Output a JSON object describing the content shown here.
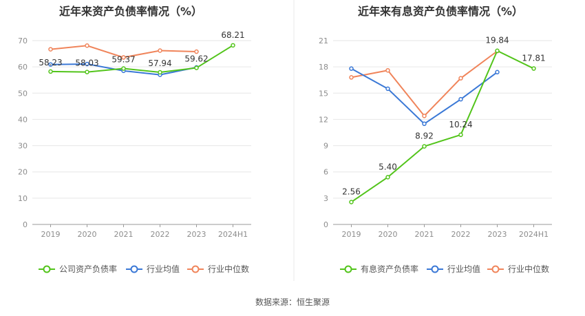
{
  "source": "数据来源：恒生聚源",
  "chart_data": [
    {
      "type": "line",
      "title": "近年来资产负债率情况（%）",
      "categories": [
        "2019",
        "2020",
        "2021",
        "2022",
        "2023",
        "2024H1"
      ],
      "y_ticks": [
        "0",
        "10",
        "20",
        "30",
        "40",
        "50",
        "60",
        "70"
      ],
      "ylim": [
        0,
        70
      ],
      "grid": true,
      "legend_position": "bottom",
      "series": [
        {
          "name": "公司资产负债率",
          "color": "#52c41a",
          "values": [
            58.23,
            58.03,
            59.37,
            57.94,
            59.62,
            68.21
          ],
          "labels": [
            "58.23",
            "58.03",
            "59.37",
            "57.94",
            "59.62",
            "68.21"
          ]
        },
        {
          "name": "行业均值",
          "color": "#3a78d6",
          "values": [
            60.9,
            61.1,
            58.5,
            57.0,
            59.8,
            null
          ]
        },
        {
          "name": "行业中位数",
          "color": "#f0845a",
          "values": [
            66.7,
            68.1,
            63.6,
            66.2,
            65.8,
            null
          ]
        }
      ]
    },
    {
      "type": "line",
      "title": "近年来有息资产负债率情况（%）",
      "categories": [
        "2019",
        "2020",
        "2021",
        "2022",
        "2023",
        "2024H1"
      ],
      "y_ticks": [
        "0",
        "3",
        "6",
        "9",
        "12",
        "15",
        "18",
        "21"
      ],
      "ylim": [
        0,
        21
      ],
      "grid": true,
      "legend_position": "bottom",
      "series": [
        {
          "name": "有息资产负债率",
          "color": "#52c41a",
          "values": [
            2.56,
            5.4,
            8.92,
            10.24,
            19.84,
            17.81
          ],
          "labels": [
            "2.56",
            "5.40",
            "8.92",
            "10.24",
            "19.84",
            "17.81"
          ]
        },
        {
          "name": "行业均值",
          "color": "#3a78d6",
          "values": [
            17.8,
            15.5,
            11.5,
            14.3,
            17.4,
            null
          ]
        },
        {
          "name": "行业中位数",
          "color": "#f0845a",
          "values": [
            16.8,
            17.6,
            12.4,
            16.7,
            19.8,
            null
          ]
        }
      ]
    }
  ]
}
